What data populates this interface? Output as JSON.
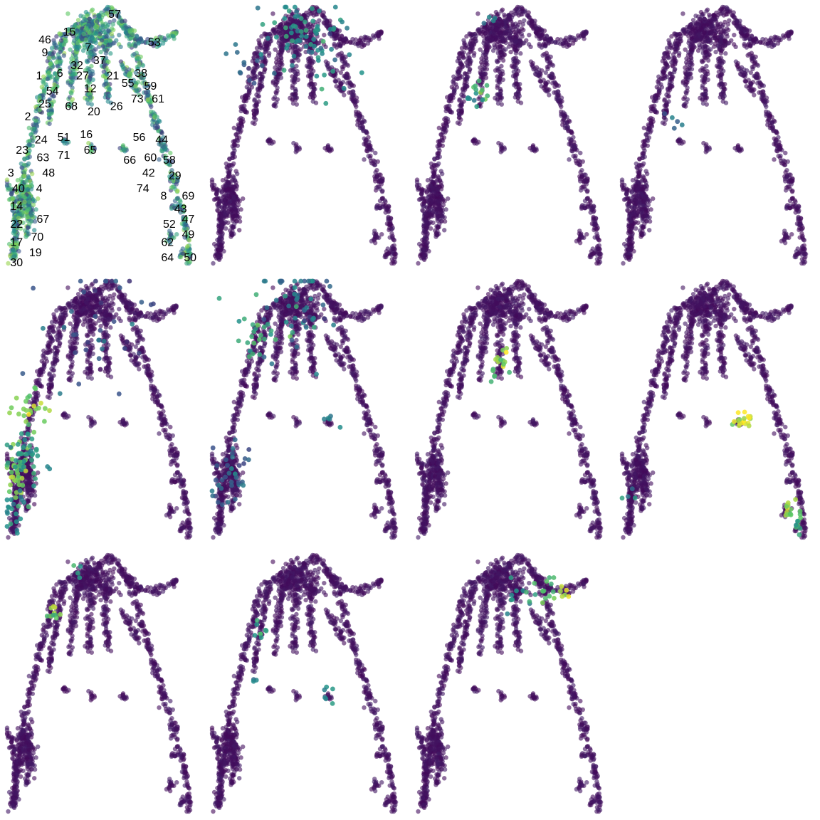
{
  "chart_data": {
    "type": "scatter",
    "layout": "grid of 11 small-multiple embedding panels (3 rows x 4 columns, last cell empty)",
    "axes": "hidden",
    "grid": false,
    "legend": "none",
    "colormap": [
      "#440154",
      "#3b528b",
      "#21918c",
      "#5ec962",
      "#fde725"
    ],
    "point_alpha": 0.6,
    "clusters": [
      {
        "id": "57",
        "x": 0.57,
        "y": 0.03
      },
      {
        "id": "15",
        "x": 0.33,
        "y": 0.1
      },
      {
        "id": "46",
        "x": 0.2,
        "y": 0.13
      },
      {
        "id": "53",
        "x": 0.78,
        "y": 0.14
      },
      {
        "id": "9",
        "x": 0.2,
        "y": 0.18
      },
      {
        "id": "7",
        "x": 0.43,
        "y": 0.16
      },
      {
        "id": "37",
        "x": 0.49,
        "y": 0.21
      },
      {
        "id": "32",
        "x": 0.37,
        "y": 0.23
      },
      {
        "id": "38",
        "x": 0.71,
        "y": 0.26
      },
      {
        "id": "1",
        "x": 0.17,
        "y": 0.27
      },
      {
        "id": "6",
        "x": 0.28,
        "y": 0.26
      },
      {
        "id": "27",
        "x": 0.4,
        "y": 0.27
      },
      {
        "id": "21",
        "x": 0.56,
        "y": 0.27
      },
      {
        "id": "55",
        "x": 0.64,
        "y": 0.3
      },
      {
        "id": "59",
        "x": 0.76,
        "y": 0.31
      },
      {
        "id": "54",
        "x": 0.24,
        "y": 0.33
      },
      {
        "id": "12",
        "x": 0.44,
        "y": 0.32
      },
      {
        "id": "73",
        "x": 0.69,
        "y": 0.36
      },
      {
        "id": "61",
        "x": 0.8,
        "y": 0.36
      },
      {
        "id": "25",
        "x": 0.2,
        "y": 0.38
      },
      {
        "id": "68",
        "x": 0.34,
        "y": 0.39
      },
      {
        "id": "20",
        "x": 0.46,
        "y": 0.41
      },
      {
        "id": "26",
        "x": 0.58,
        "y": 0.39
      },
      {
        "id": "2",
        "x": 0.11,
        "y": 0.43
      },
      {
        "id": "16",
        "x": 0.42,
        "y": 0.5
      },
      {
        "id": "51",
        "x": 0.3,
        "y": 0.51
      },
      {
        "id": "56",
        "x": 0.7,
        "y": 0.51
      },
      {
        "id": "44",
        "x": 0.82,
        "y": 0.52
      },
      {
        "id": "24",
        "x": 0.18,
        "y": 0.52
      },
      {
        "id": "23",
        "x": 0.08,
        "y": 0.56
      },
      {
        "id": "71",
        "x": 0.3,
        "y": 0.58
      },
      {
        "id": "65",
        "x": 0.44,
        "y": 0.56
      },
      {
        "id": "66",
        "x": 0.65,
        "y": 0.6
      },
      {
        "id": "60",
        "x": 0.76,
        "y": 0.59
      },
      {
        "id": "63",
        "x": 0.19,
        "y": 0.59
      },
      {
        "id": "58",
        "x": 0.86,
        "y": 0.6
      },
      {
        "id": "48",
        "x": 0.22,
        "y": 0.65
      },
      {
        "id": "42",
        "x": 0.75,
        "y": 0.65
      },
      {
        "id": "29",
        "x": 0.89,
        "y": 0.66
      },
      {
        "id": "3",
        "x": 0.02,
        "y": 0.65
      },
      {
        "id": "74",
        "x": 0.72,
        "y": 0.71
      },
      {
        "id": "8",
        "x": 0.83,
        "y": 0.74
      },
      {
        "id": "69",
        "x": 0.96,
        "y": 0.74
      },
      {
        "id": "40",
        "x": 0.06,
        "y": 0.71
      },
      {
        "id": "4",
        "x": 0.17,
        "y": 0.71
      },
      {
        "id": "43",
        "x": 0.92,
        "y": 0.79
      },
      {
        "id": "14",
        "x": 0.05,
        "y": 0.78
      },
      {
        "id": "47",
        "x": 0.96,
        "y": 0.83
      },
      {
        "id": "67",
        "x": 0.19,
        "y": 0.83
      },
      {
        "id": "52",
        "x": 0.86,
        "y": 0.85
      },
      {
        "id": "22",
        "x": 0.05,
        "y": 0.85
      },
      {
        "id": "49",
        "x": 0.96,
        "y": 0.89
      },
      {
        "id": "70",
        "x": 0.16,
        "y": 0.9
      },
      {
        "id": "62",
        "x": 0.85,
        "y": 0.92
      },
      {
        "id": "17",
        "x": 0.05,
        "y": 0.92
      },
      {
        "id": "19",
        "x": 0.15,
        "y": 0.96
      },
      {
        "id": "64",
        "x": 0.85,
        "y": 0.98
      },
      {
        "id": "50",
        "x": 0.97,
        "y": 0.98
      },
      {
        "id": "30",
        "x": 0.05,
        "y": 1.0
      }
    ],
    "panels": [
      {
        "panel": 1,
        "labeled": true,
        "highlights": []
      },
      {
        "panel": 2,
        "labeled": false,
        "highlights": [
          {
            "x": 0.45,
            "y": 0.08,
            "level": 0.5,
            "spread": 0.08,
            "n": 45
          },
          {
            "x": 0.62,
            "y": 0.18,
            "level": 0.45,
            "spread": 0.07,
            "n": 30
          },
          {
            "x": 0.18,
            "y": 0.2,
            "level": 0.35,
            "spread": 0.05,
            "n": 15
          }
        ]
      },
      {
        "panel": 3,
        "labeled": false,
        "highlights": [
          {
            "x": 0.34,
            "y": 0.3,
            "level": 0.65,
            "spread": 0.03,
            "n": 10
          },
          {
            "x": 0.3,
            "y": 0.36,
            "level": 0.5,
            "spread": 0.02,
            "n": 6
          },
          {
            "x": 0.38,
            "y": 0.05,
            "level": 0.4,
            "spread": 0.02,
            "n": 4
          }
        ]
      },
      {
        "panel": 4,
        "labeled": false,
        "highlights": [
          {
            "x": 0.27,
            "y": 0.45,
            "level": 0.4,
            "spread": 0.02,
            "n": 5
          }
        ]
      },
      {
        "panel": 5,
        "labeled": false,
        "highlights": [
          {
            "x": 0.12,
            "y": 0.5,
            "level": 0.8,
            "spread": 0.04,
            "n": 25
          },
          {
            "x": 0.05,
            "y": 0.75,
            "level": 0.8,
            "spread": 0.04,
            "n": 35
          },
          {
            "x": 0.1,
            "y": 0.68,
            "level": 0.55,
            "spread": 0.05,
            "n": 40
          },
          {
            "x": 0.05,
            "y": 0.9,
            "level": 0.5,
            "spread": 0.04,
            "n": 20
          },
          {
            "x": 0.5,
            "y": 0.15,
            "level": 0.25,
            "spread": 0.15,
            "n": 40
          }
        ]
      },
      {
        "panel": 6,
        "labeled": false,
        "highlights": [
          {
            "x": 0.25,
            "y": 0.2,
            "level": 0.6,
            "spread": 0.06,
            "n": 25
          },
          {
            "x": 0.45,
            "y": 0.08,
            "level": 0.4,
            "spread": 0.1,
            "n": 50
          },
          {
            "x": 0.1,
            "y": 0.75,
            "level": 0.35,
            "spread": 0.06,
            "n": 35
          },
          {
            "x": 0.62,
            "y": 0.55,
            "level": 0.45,
            "spread": 0.02,
            "n": 5
          }
        ]
      },
      {
        "panel": 7,
        "labeled": false,
        "highlights": [
          {
            "x": 0.44,
            "y": 0.3,
            "level": 0.8,
            "spread": 0.02,
            "n": 12
          },
          {
            "x": 0.42,
            "y": 0.36,
            "level": 0.6,
            "spread": 0.02,
            "n": 6
          }
        ]
      },
      {
        "panel": 8,
        "labeled": false,
        "highlights": [
          {
            "x": 0.66,
            "y": 0.54,
            "level": 0.95,
            "spread": 0.02,
            "n": 12
          },
          {
            "x": 0.6,
            "y": 0.55,
            "level": 0.85,
            "spread": 0.015,
            "n": 6
          },
          {
            "x": 0.88,
            "y": 0.9,
            "level": 0.8,
            "spread": 0.02,
            "n": 15
          },
          {
            "x": 0.93,
            "y": 0.95,
            "level": 0.6,
            "spread": 0.015,
            "n": 8
          },
          {
            "x": 0.05,
            "y": 0.85,
            "level": 0.5,
            "spread": 0.02,
            "n": 4
          }
        ]
      },
      {
        "panel": 9,
        "labeled": false,
        "highlights": [
          {
            "x": 0.25,
            "y": 0.22,
            "level": 0.8,
            "spread": 0.02,
            "n": 10
          },
          {
            "x": 0.37,
            "y": 0.05,
            "level": 0.5,
            "spread": 0.02,
            "n": 4
          }
        ]
      },
      {
        "panel": 10,
        "labeled": false,
        "highlights": [
          {
            "x": 0.25,
            "y": 0.3,
            "level": 0.6,
            "spread": 0.02,
            "n": 8
          },
          {
            "x": 0.62,
            "y": 0.54,
            "level": 0.5,
            "spread": 0.02,
            "n": 6
          },
          {
            "x": 0.22,
            "y": 0.5,
            "level": 0.45,
            "spread": 0.01,
            "n": 3
          }
        ]
      },
      {
        "panel": 11,
        "labeled": false,
        "highlights": [
          {
            "x": 0.55,
            "y": 0.18,
            "level": 0.5,
            "spread": 0.04,
            "n": 10
          },
          {
            "x": 0.68,
            "y": 0.15,
            "level": 0.7,
            "spread": 0.04,
            "n": 15
          },
          {
            "x": 0.78,
            "y": 0.14,
            "level": 0.9,
            "spread": 0.02,
            "n": 5
          }
        ]
      }
    ]
  }
}
